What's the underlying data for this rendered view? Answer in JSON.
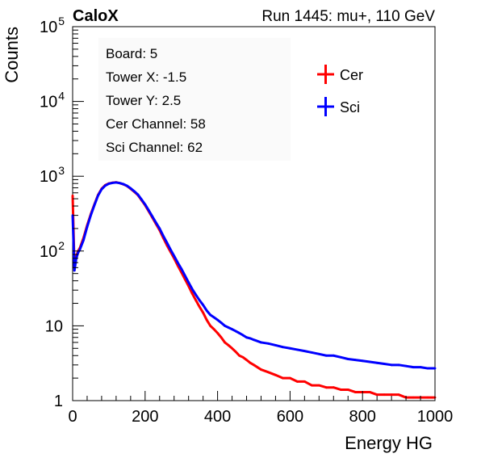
{
  "header": {
    "experiment": "CaloX",
    "run_label": "Run 1445: mu+, 110 GeV"
  },
  "info_box": {
    "lines": [
      "Board: 5",
      "Tower X: -1.5",
      "Tower Y: 2.5",
      "Cer Channel: 58",
      "Sci Channel: 62"
    ]
  },
  "chart_data": {
    "type": "line",
    "title": "",
    "xlabel": "Energy HG",
    "ylabel": "Counts",
    "xlim": [
      0,
      1000
    ],
    "ylim": [
      1,
      100000
    ],
    "y_log": true,
    "x_ticks": [
      "0",
      "200",
      "400",
      "600",
      "800",
      "1000"
    ],
    "y_ticks": [
      "1",
      "10",
      "10^2",
      "10^3",
      "10^4",
      "10^5"
    ],
    "legend_position": "top-right",
    "grid": false,
    "series": [
      {
        "name": "Cer",
        "color": "#ff0000",
        "x": [
          0,
          5,
          10,
          15,
          20,
          30,
          40,
          50,
          60,
          70,
          80,
          90,
          100,
          110,
          120,
          130,
          140,
          150,
          160,
          170,
          180,
          190,
          200,
          210,
          220,
          230,
          240,
          250,
          260,
          270,
          280,
          290,
          300,
          310,
          320,
          330,
          340,
          350,
          360,
          370,
          380,
          390,
          400,
          410,
          420,
          430,
          440,
          450,
          460,
          470,
          480,
          490,
          500,
          520,
          540,
          560,
          580,
          600,
          620,
          640,
          660,
          680,
          700,
          720,
          740,
          760,
          780,
          800,
          820,
          840,
          860,
          880,
          900,
          920,
          940,
          960,
          980,
          1000
        ],
        "values": [
          550,
          60,
          85,
          100,
          110,
          150,
          220,
          310,
          420,
          560,
          680,
          760,
          800,
          820,
          830,
          810,
          780,
          740,
          680,
          620,
          560,
          480,
          410,
          340,
          280,
          230,
          190,
          150,
          120,
          98,
          80,
          64,
          52,
          42,
          34,
          27,
          22,
          18,
          15,
          12,
          10,
          9,
          8,
          7,
          6,
          5.5,
          5,
          4.5,
          4,
          3.8,
          3.5,
          3.2,
          3,
          2.6,
          2.4,
          2.2,
          2,
          2,
          1.8,
          1.8,
          1.6,
          1.6,
          1.5,
          1.5,
          1.4,
          1.4,
          1.3,
          1.3,
          1.3,
          1.2,
          1.2,
          1.2,
          1.2,
          1.1,
          1.1,
          1.1,
          1.1,
          1.1
        ]
      },
      {
        "name": "Sci",
        "color": "#0000ff",
        "x": [
          0,
          5,
          10,
          15,
          20,
          30,
          40,
          50,
          60,
          70,
          80,
          90,
          100,
          110,
          120,
          130,
          140,
          150,
          160,
          170,
          180,
          190,
          200,
          210,
          220,
          230,
          240,
          250,
          260,
          270,
          280,
          290,
          300,
          310,
          320,
          330,
          340,
          350,
          360,
          370,
          380,
          390,
          400,
          410,
          420,
          430,
          440,
          450,
          460,
          470,
          480,
          490,
          500,
          520,
          540,
          560,
          580,
          600,
          620,
          640,
          660,
          680,
          700,
          720,
          740,
          760,
          780,
          800,
          820,
          840,
          860,
          880,
          900,
          920,
          940,
          960,
          980,
          1000
        ],
        "values": [
          300,
          55,
          80,
          95,
          105,
          140,
          210,
          300,
          410,
          550,
          670,
          750,
          795,
          815,
          825,
          810,
          785,
          745,
          690,
          630,
          570,
          490,
          420,
          350,
          290,
          240,
          200,
          160,
          130,
          105,
          86,
          70,
          58,
          47,
          38,
          31,
          26,
          22,
          19,
          16,
          14,
          13,
          12,
          11,
          10,
          9.5,
          9,
          8.5,
          8,
          7.5,
          7,
          6.8,
          6.5,
          6,
          5.8,
          5.5,
          5.2,
          5,
          4.8,
          4.6,
          4.4,
          4.2,
          4,
          4,
          3.8,
          3.6,
          3.5,
          3.4,
          3.3,
          3.2,
          3.1,
          3,
          3,
          2.9,
          2.8,
          2.8,
          2.7,
          2.7
        ]
      }
    ]
  }
}
